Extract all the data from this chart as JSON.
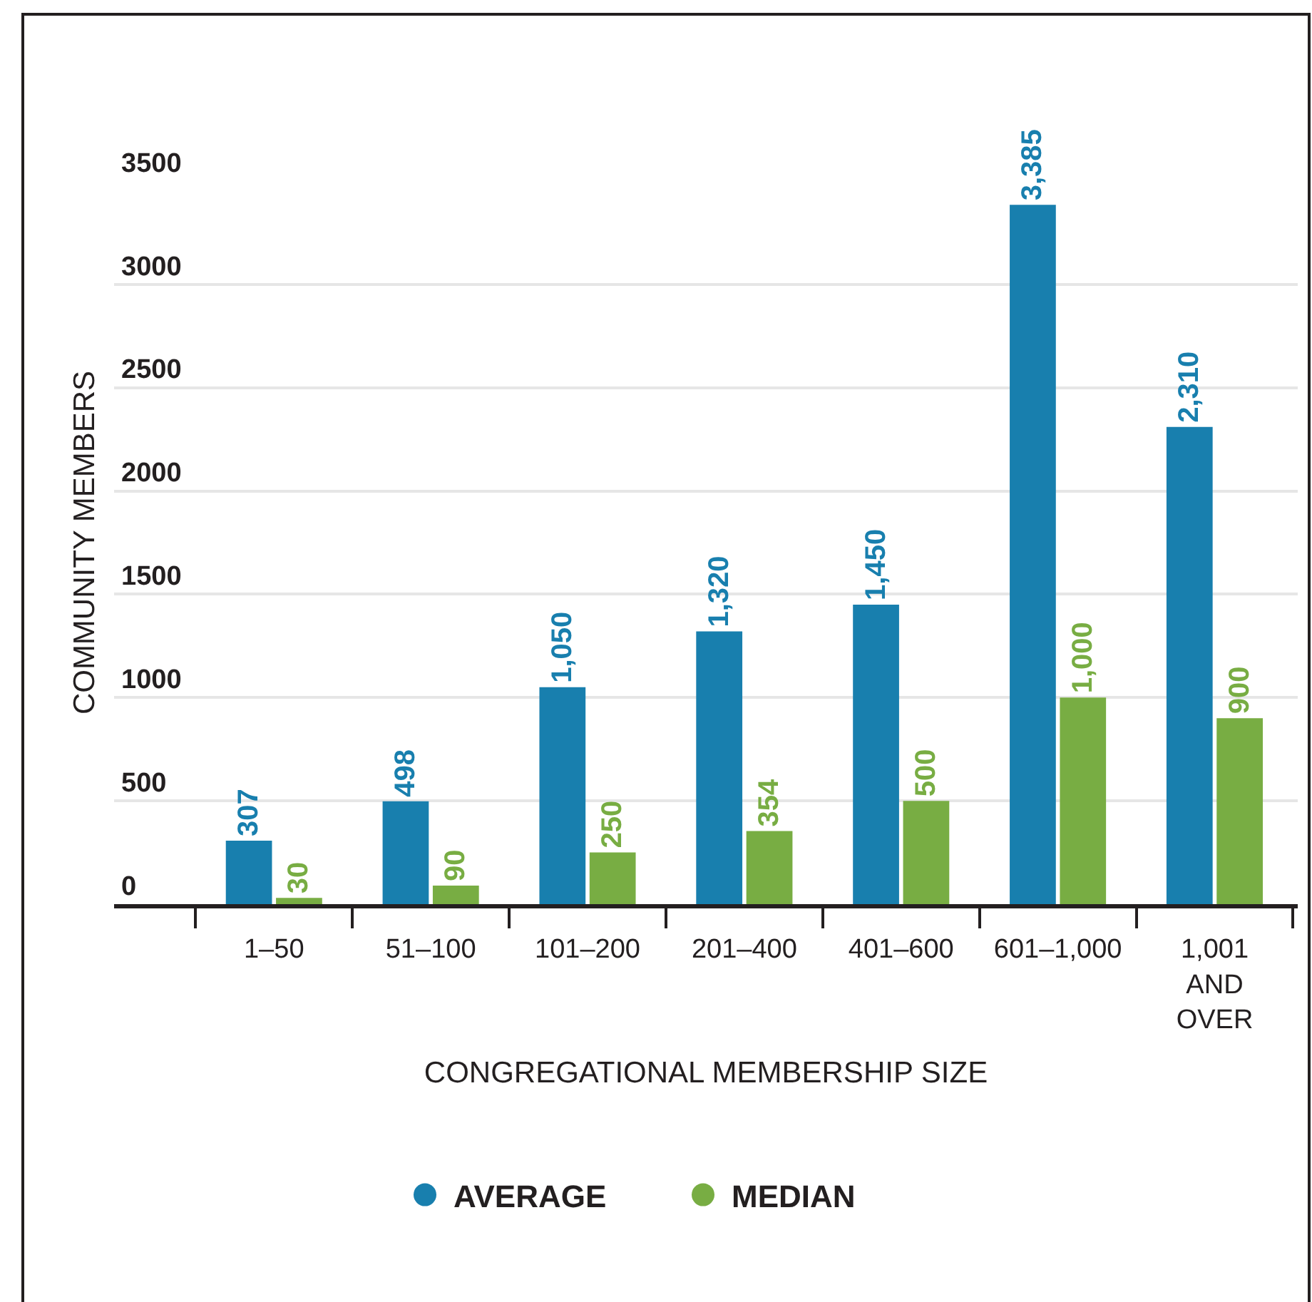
{
  "chart_data": {
    "type": "bar",
    "xlabel": "CONGREGATIONAL MEMBERSHIP SIZE",
    "ylabel": "COMMUNITY MEMBERS",
    "categories": [
      "1–50",
      "51–100",
      "101–200",
      "201–400",
      "401–600",
      "601–1,000",
      "1,001 AND OVER"
    ],
    "series": [
      {
        "name": "AVERAGE",
        "color": "#187fae",
        "values": [
          307,
          498,
          1050,
          1320,
          1450,
          3385,
          2310
        ],
        "value_labels": [
          "307",
          "498",
          "1,050",
          "1,320",
          "1,450",
          "3,385",
          "2,310"
        ]
      },
      {
        "name": "MEDIAN",
        "color": "#78ad43",
        "values": [
          30,
          90,
          250,
          354,
          500,
          1000,
          900
        ],
        "value_labels": [
          "30",
          "90",
          "250",
          "354",
          "500",
          "1,000",
          "900"
        ]
      }
    ],
    "ylim": [
      0,
      3500
    ],
    "yticks": [
      0,
      500,
      1000,
      1500,
      2000,
      2500,
      3000,
      3500
    ],
    "grid": "y",
    "legend": "bottom"
  }
}
